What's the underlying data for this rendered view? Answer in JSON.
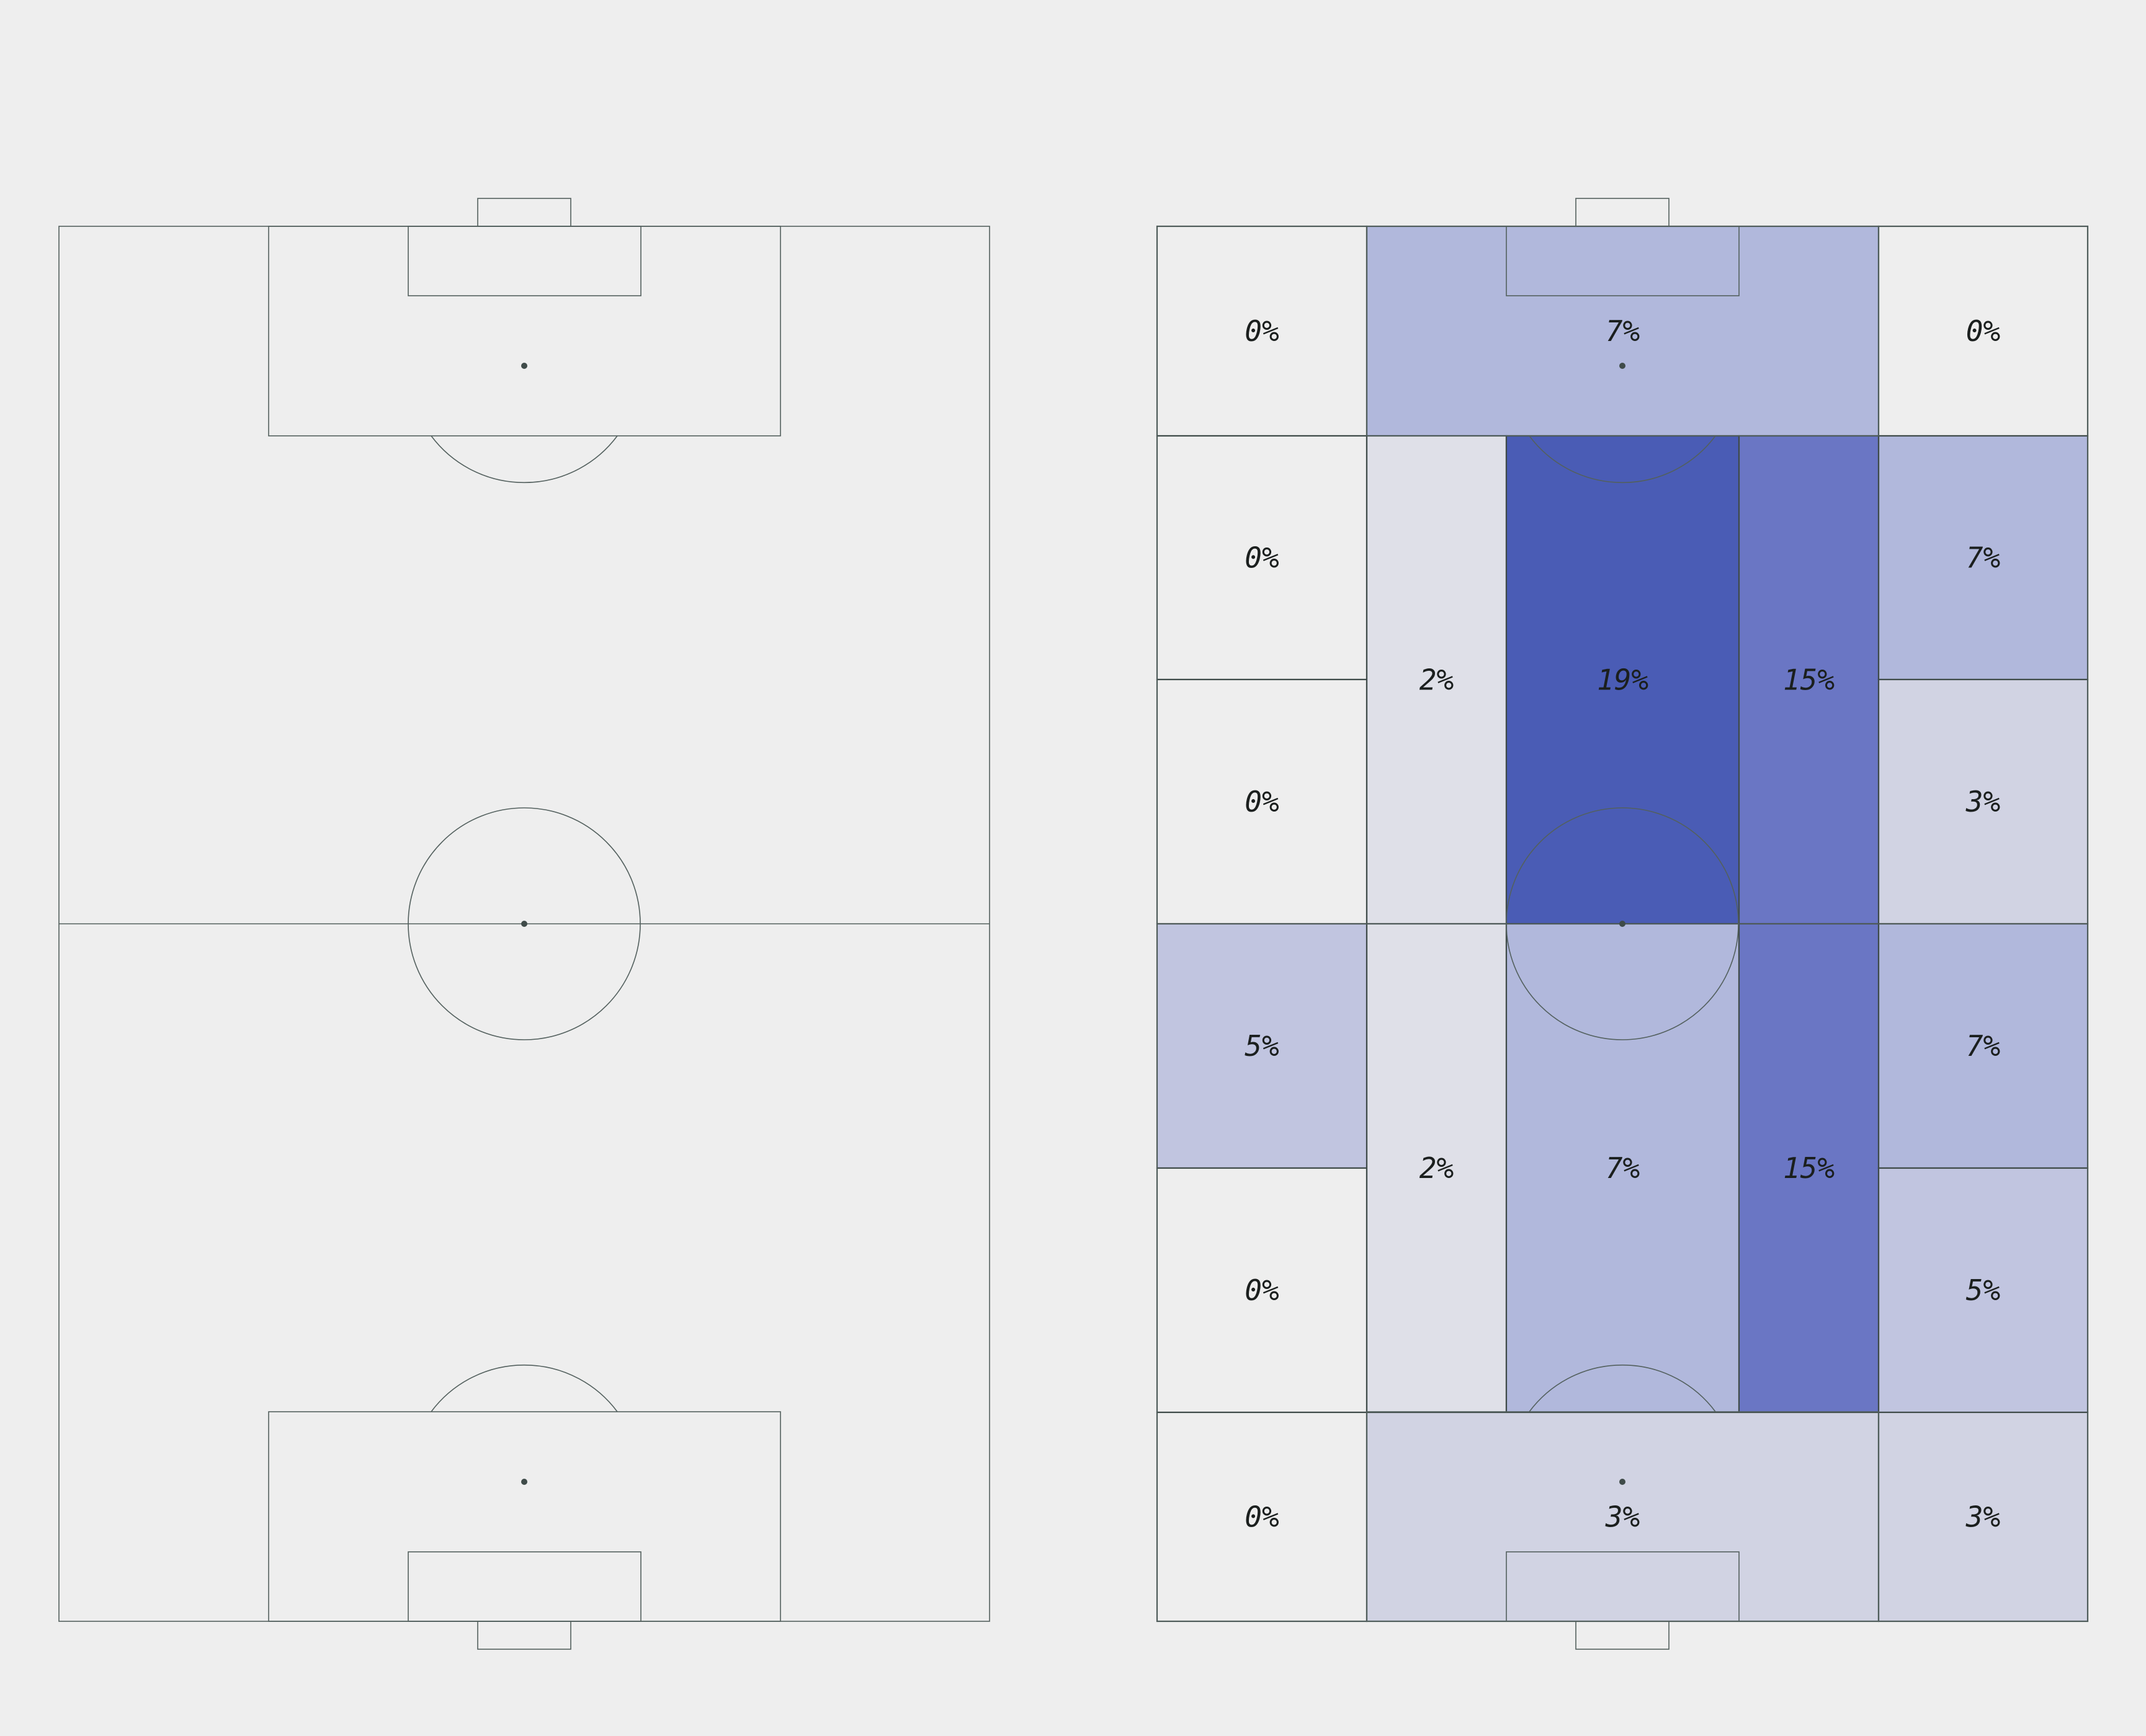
{
  "chart_data": {
    "type": "heatmap",
    "title": "",
    "units": "%",
    "colors": {
      "background": "#eeeeee",
      "lines": "#53605e",
      "scale": [
        "#eeeeee",
        "#dfe0e8",
        "#d1d3e3",
        "#c1c5e0",
        "#b1b8dc",
        "#6a76c4",
        "#4a5cb5"
      ]
    },
    "panels": [
      {
        "name": "pitch-empty",
        "zones": []
      },
      {
        "name": "pitch-zones",
        "zones": [
          {
            "id": "top-left",
            "label": "0%",
            "value": 0
          },
          {
            "id": "top-box",
            "label": "7%",
            "value": 7
          },
          {
            "id": "top-right",
            "label": "0%",
            "value": 0
          },
          {
            "id": "left-upper-1",
            "label": "0%",
            "value": 0
          },
          {
            "id": "left-upper-2",
            "label": "0%",
            "value": 0
          },
          {
            "id": "inner-left-upper",
            "label": "2%",
            "value": 2
          },
          {
            "id": "centre-upper",
            "label": "19%",
            "value": 19
          },
          {
            "id": "inner-right-upper",
            "label": "15%",
            "value": 15
          },
          {
            "id": "right-upper-1",
            "label": "7%",
            "value": 7
          },
          {
            "id": "right-upper-2",
            "label": "3%",
            "value": 3
          },
          {
            "id": "left-lower-1",
            "label": "5%",
            "value": 5
          },
          {
            "id": "left-lower-2",
            "label": "0%",
            "value": 0
          },
          {
            "id": "inner-left-lower",
            "label": "2%",
            "value": 2
          },
          {
            "id": "centre-lower",
            "label": "7%",
            "value": 7
          },
          {
            "id": "inner-right-lower",
            "label": "15%",
            "value": 15
          },
          {
            "id": "right-lower-1",
            "label": "7%",
            "value": 7
          },
          {
            "id": "right-lower-2",
            "label": "5%",
            "value": 5
          },
          {
            "id": "bottom-left",
            "label": "0%",
            "value": 0
          },
          {
            "id": "bottom-box",
            "label": "3%",
            "value": 3
          },
          {
            "id": "bottom-right",
            "label": "3%",
            "value": 3
          }
        ]
      }
    ]
  }
}
